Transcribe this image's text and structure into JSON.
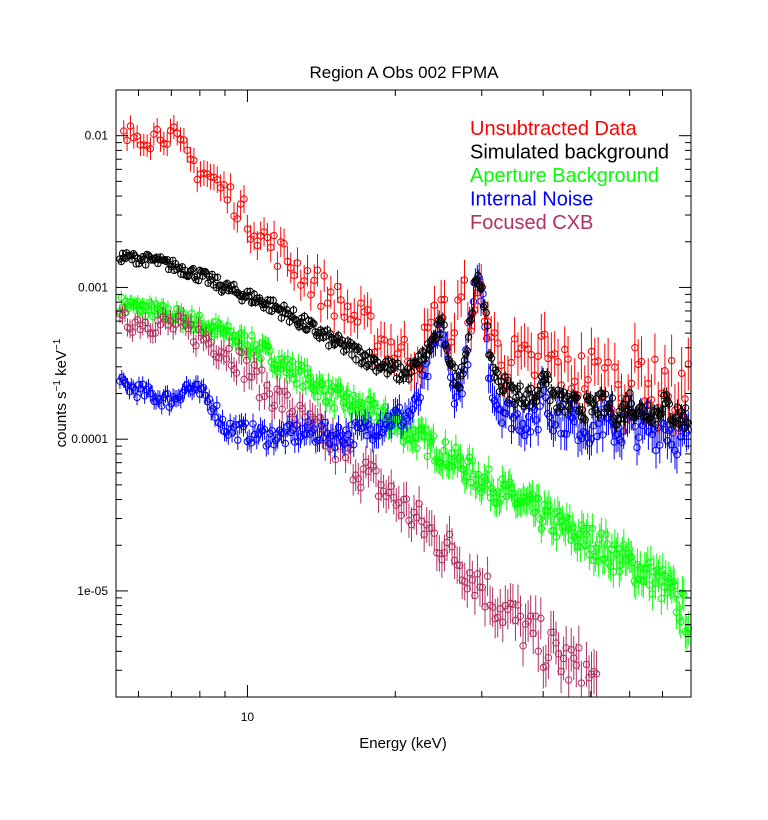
{
  "chart_data": {
    "type": "scatter",
    "title": "Region A Obs 002 FPMA",
    "xlabel": "Energy (keV)",
    "ylabel": {
      "base": "counts s",
      "exp1": "−1",
      "mid": " keV",
      "exp2": "−1"
    },
    "xscale": "log",
    "yscale": "log",
    "xlim": [
      5.4,
      80
    ],
    "ylim": [
      2e-06,
      0.02
    ],
    "x_ticks": [
      {
        "value": 10,
        "label": "10"
      }
    ],
    "y_ticks": [
      {
        "value": 0.01,
        "label": "0.01"
      },
      {
        "value": 0.001,
        "label": "0.001"
      },
      {
        "value": 0.0001,
        "label": "0.0001"
      },
      {
        "value": 1e-05,
        "label": "1e-05"
      }
    ],
    "legend_position": "top-right",
    "series": [
      {
        "name": "Unsubtracted Data",
        "color": "#ff0000",
        "x": [
          5.6,
          6.0,
          6.4,
          6.8,
          7.2,
          7.6,
          8.0,
          8.5,
          9.0,
          9.5,
          10.0,
          11.0,
          12.0,
          13.0,
          14.0,
          15.0,
          16.0,
          17.0,
          18.0,
          19.0,
          20.0,
          21.0,
          22.0,
          23.0,
          24.0,
          24.5,
          25.0,
          25.5,
          26.0,
          27.0,
          28.0,
          29.0,
          30.0,
          31.0,
          32.0,
          33.0,
          35.0,
          37.0,
          39.0,
          40.0,
          41.0,
          43.0,
          45.0,
          47.0,
          50.0,
          53.0,
          55.0,
          57.0,
          60.0,
          63.0,
          66.0,
          68.0,
          70.0,
          73.0,
          76.0,
          79.0
        ],
        "y": [
          0.0095,
          0.0105,
          0.0098,
          0.011,
          0.0088,
          0.007,
          0.006,
          0.0052,
          0.0042,
          0.0036,
          0.0028,
          0.002,
          0.00155,
          0.00125,
          0.001,
          0.00085,
          0.0007,
          0.0006,
          0.0005,
          0.00044,
          0.0004,
          0.00036,
          0.00035,
          0.00042,
          0.0006,
          0.0008,
          0.00075,
          0.0005,
          0.00045,
          0.00075,
          0.00085,
          0.00055,
          0.001,
          0.00055,
          0.0004,
          0.00036,
          0.00033,
          0.0003,
          0.0003,
          0.00045,
          0.00033,
          0.0003,
          0.00028,
          0.00026,
          0.00028,
          0.00026,
          0.00024,
          0.00025,
          0.00023,
          0.0003,
          0.00024,
          0.00022,
          0.00026,
          0.00022,
          0.0002,
          0.0002
        ]
      },
      {
        "name": "Simulated background",
        "color": "#000000",
        "x": [
          5.5,
          6.0,
          6.5,
          7.0,
          7.5,
          8.0,
          8.5,
          9.0,
          9.5,
          10.0,
          11.0,
          12.0,
          13.0,
          14.0,
          15.0,
          16.0,
          17.0,
          18.0,
          19.0,
          20.0,
          21.0,
          22.0,
          23.0,
          24.0,
          24.5,
          25.0,
          25.5,
          26.0,
          27.0,
          28.0,
          29.0,
          30.0,
          31.0,
          32.0,
          33.0,
          35.0,
          37.0,
          39.0,
          40.0,
          41.0,
          43.0,
          45.0,
          48.0,
          50.0,
          53.0,
          55.0,
          57.0,
          60.0,
          63.0,
          66.0,
          68.0,
          70.0,
          73.0,
          76.0,
          79.0
        ],
        "y": [
          0.0016,
          0.00155,
          0.0015,
          0.0014,
          0.0013,
          0.0012,
          0.0011,
          0.001,
          0.00093,
          0.00088,
          0.00078,
          0.00068,
          0.00058,
          0.0005,
          0.00044,
          0.0004,
          0.00036,
          0.00033,
          0.0003,
          0.00028,
          0.00027,
          0.0003,
          0.00036,
          0.00046,
          0.00053,
          0.00055,
          0.00042,
          0.00028,
          0.00025,
          0.0004,
          0.001,
          0.0011,
          0.0004,
          0.00026,
          0.00023,
          0.0002,
          0.00019,
          0.00019,
          0.0003,
          0.00021,
          0.00018,
          0.00017,
          0.00016,
          0.00016,
          0.00017,
          0.00016,
          0.00014,
          0.00018,
          0.00015,
          0.00016,
          0.00014,
          0.00018,
          0.00015,
          0.00014,
          0.00014
        ]
      },
      {
        "name": "Aperture Background",
        "color": "#00ff00",
        "x": [
          5.5,
          6.0,
          6.5,
          7.0,
          7.5,
          8.0,
          9.0,
          10.0,
          11.0,
          12.0,
          13.0,
          14.0,
          15.0,
          16.0,
          17.0,
          18.0,
          19.0,
          20.0,
          22.0,
          24.0,
          26.0,
          28.0,
          30.0,
          33.0,
          36.0,
          40.0,
          44.0,
          48.0,
          52.0,
          56.0,
          60.0,
          65.0,
          70.0,
          75.0,
          79.0
        ],
        "y": [
          0.00078,
          0.00074,
          0.0007,
          0.00066,
          0.00062,
          0.00058,
          0.0005,
          0.00043,
          0.00036,
          0.0003,
          0.00026,
          0.00022,
          0.00019,
          0.000175,
          0.00016,
          0.000148,
          0.000138,
          0.000125,
          0.000105,
          8.8e-05,
          7.5e-05,
          6.3e-05,
          5.4e-05,
          4.5e-05,
          3.8e-05,
          3.1e-05,
          2.6e-05,
          2.2e-05,
          2e-05,
          1.7e-05,
          1.5e-05,
          1.3e-05,
          1.1e-05,
          8.5e-06,
          6.5e-06
        ]
      },
      {
        "name": "Internal Noise",
        "color": "#0000ff",
        "x": [
          5.5,
          6.0,
          6.5,
          7.0,
          7.5,
          8.0,
          8.5,
          9.0,
          10.0,
          11.0,
          12.0,
          13.0,
          14.0,
          15.0,
          16.0,
          17.0,
          18.0,
          19.0,
          20.0,
          21.0,
          22.0,
          23.0,
          24.0,
          24.5,
          25.0,
          25.5,
          26.0,
          27.0,
          28.0,
          29.0,
          30.0,
          31.0,
          32.0,
          33.0,
          35.0,
          37.0,
          39.0,
          40.0,
          41.0,
          43.0,
          45.0,
          48.0,
          50.0,
          53.0,
          55.0,
          57.0,
          60.0,
          63.0,
          66.0,
          68.0,
          70.0,
          73.0,
          76.0,
          79.0
        ],
        "y": [
          0.00023,
          0.00021,
          0.00019,
          0.00018,
          0.00022,
          0.0002,
          0.00017,
          0.00012,
          0.00011,
          0.000105,
          0.000105,
          0.00011,
          0.00011,
          0.000105,
          0.00011,
          0.00011,
          0.00012,
          0.00013,
          0.00014,
          0.00014,
          0.00016,
          0.00025,
          0.0004,
          0.00048,
          0.0005,
          0.00036,
          0.00022,
          0.0002,
          0.00035,
          0.0009,
          0.001,
          0.0003,
          0.00018,
          0.00016,
          0.00014,
          0.00013,
          0.00013,
          0.00025,
          0.00015,
          0.00014,
          0.00013,
          0.00012,
          0.00012,
          0.00013,
          0.00012,
          0.00011,
          0.00013,
          0.00011,
          0.00012,
          0.00011,
          0.00013,
          0.00011,
          0.0001,
          0.0001
        ]
      },
      {
        "name": "Focused CXB",
        "color": "#b03060",
        "x": [
          5.5,
          6.0,
          6.5,
          7.0,
          7.5,
          8.0,
          8.5,
          9.0,
          9.5,
          10.0,
          10.5,
          11.0,
          12.0,
          13.0,
          14.0,
          15.0,
          16.0,
          17.0,
          18.0,
          19.0,
          20.0,
          22.0,
          24.0,
          26.0,
          28.0,
          30.0,
          32.0,
          35.0,
          38.0,
          41.0,
          44.0,
          47.0,
          50.0,
          52.0
        ],
        "y": [
          0.00058,
          0.0006,
          0.00058,
          0.00056,
          0.00052,
          0.00048,
          0.00043,
          0.00039,
          0.00034,
          0.00029,
          0.00024,
          0.00021,
          0.00017,
          0.00013,
          0.00011,
          9e-05,
          7.5e-05,
          6.3e-05,
          5.4e-05,
          4.6e-05,
          4e-05,
          3e-05,
          2.3e-05,
          1.8e-05,
          1.4e-05,
          1.1e-05,
          8.5e-06,
          6.5e-06,
          5e-06,
          4.2e-06,
          3.5e-06,
          3e-06,
          2.6e-06,
          2.4e-06
        ]
      }
    ]
  }
}
